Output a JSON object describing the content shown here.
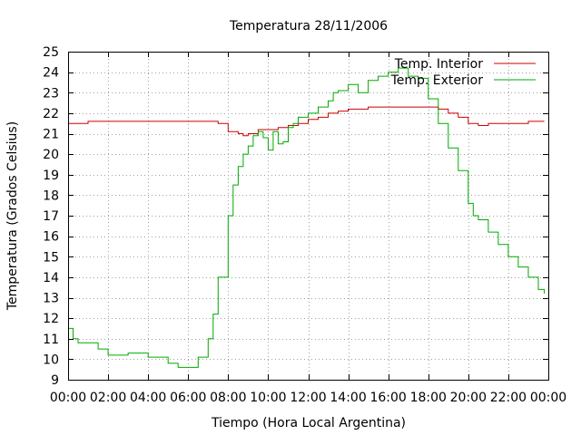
{
  "chart_data": {
    "type": "line",
    "title": "Temperatura 28/11/2006",
    "xlabel": "Tiempo (Hora Local Argentina)",
    "ylabel": "Temperatura (Grados Celsius)",
    "xlim": [
      0,
      24
    ],
    "ylim": [
      9,
      25
    ],
    "grid": true,
    "legend_position": "top-right",
    "x_ticks": [
      0,
      2,
      4,
      6,
      8,
      10,
      12,
      14,
      16,
      18,
      20,
      22,
      24
    ],
    "x_tick_labels": [
      "00:00",
      "02:00",
      "04:00",
      "06:00",
      "08:00",
      "10:00",
      "12:00",
      "14:00",
      "16:00",
      "18:00",
      "20:00",
      "22:00",
      "00:00"
    ],
    "y_ticks": [
      9,
      10,
      11,
      12,
      13,
      14,
      15,
      16,
      17,
      18,
      19,
      20,
      21,
      22,
      23,
      24,
      25
    ],
    "y_tick_labels": [
      "9",
      "10",
      "11",
      "12",
      "13",
      "14",
      "15",
      "16",
      "17",
      "18",
      "19",
      "20",
      "21",
      "22",
      "23",
      "24",
      "25"
    ],
    "series": [
      {
        "name": "Temp. Interior",
        "color": "#cc0000",
        "x": [
          0,
          0.5,
          1,
          1.5,
          2,
          3,
          4,
          5,
          5.5,
          6,
          7,
          7.5,
          8,
          8.5,
          8.75,
          9,
          9.5,
          10,
          10.5,
          11,
          11.5,
          12,
          12.5,
          13,
          13.5,
          14,
          14.5,
          15,
          16,
          16.5,
          17,
          17.5,
          18,
          18.5,
          19,
          19.5,
          20,
          20.5,
          21,
          21.5,
          22,
          23,
          23.8
        ],
        "y": [
          21.5,
          21.5,
          21.6,
          21.6,
          21.6,
          21.6,
          21.6,
          21.6,
          21.6,
          21.6,
          21.6,
          21.5,
          21.1,
          21.0,
          20.9,
          21.0,
          21.2,
          21.2,
          21.3,
          21.4,
          21.5,
          21.7,
          21.8,
          22.0,
          22.1,
          22.2,
          22.2,
          22.3,
          22.3,
          22.3,
          22.3,
          22.3,
          22.3,
          22.2,
          22.0,
          21.8,
          21.5,
          21.4,
          21.5,
          21.5,
          21.5,
          21.6,
          21.6
        ]
      },
      {
        "name": "Temp. Exterior",
        "color": "#00aa00",
        "x": [
          0,
          0.25,
          0.5,
          1,
          1.5,
          2,
          2.5,
          3,
          3.5,
          4,
          4.5,
          5,
          5.5,
          6,
          6.5,
          7,
          7.25,
          7.5,
          8,
          8.25,
          8.5,
          8.75,
          9,
          9.25,
          9.5,
          9.75,
          10,
          10.25,
          10.5,
          10.75,
          11,
          11.25,
          11.5,
          12,
          12.5,
          13,
          13.25,
          13.5,
          14,
          14.5,
          15,
          15.5,
          16,
          16.5,
          17,
          17.5,
          18,
          18.5,
          19,
          19.5,
          20,
          20.25,
          20.5,
          21,
          21.5,
          22,
          22.5,
          23,
          23.5,
          23.8
        ],
        "y": [
          11.5,
          11.0,
          10.8,
          10.8,
          10.5,
          10.2,
          10.2,
          10.3,
          10.3,
          10.1,
          10.1,
          9.8,
          9.6,
          9.6,
          10.1,
          11.0,
          12.2,
          14.0,
          17.0,
          18.5,
          19.4,
          20.0,
          20.4,
          20.9,
          21.1,
          20.8,
          20.2,
          21.1,
          20.5,
          20.6,
          21.3,
          21.5,
          21.8,
          22.0,
          22.3,
          22.6,
          23.0,
          23.1,
          23.4,
          23.0,
          23.6,
          23.8,
          24.0,
          24.2,
          23.8,
          23.7,
          22.7,
          21.5,
          20.3,
          19.2,
          17.6,
          17.0,
          16.8,
          16.2,
          15.6,
          15.0,
          14.5,
          14.0,
          13.4,
          13.2
        ]
      }
    ]
  }
}
